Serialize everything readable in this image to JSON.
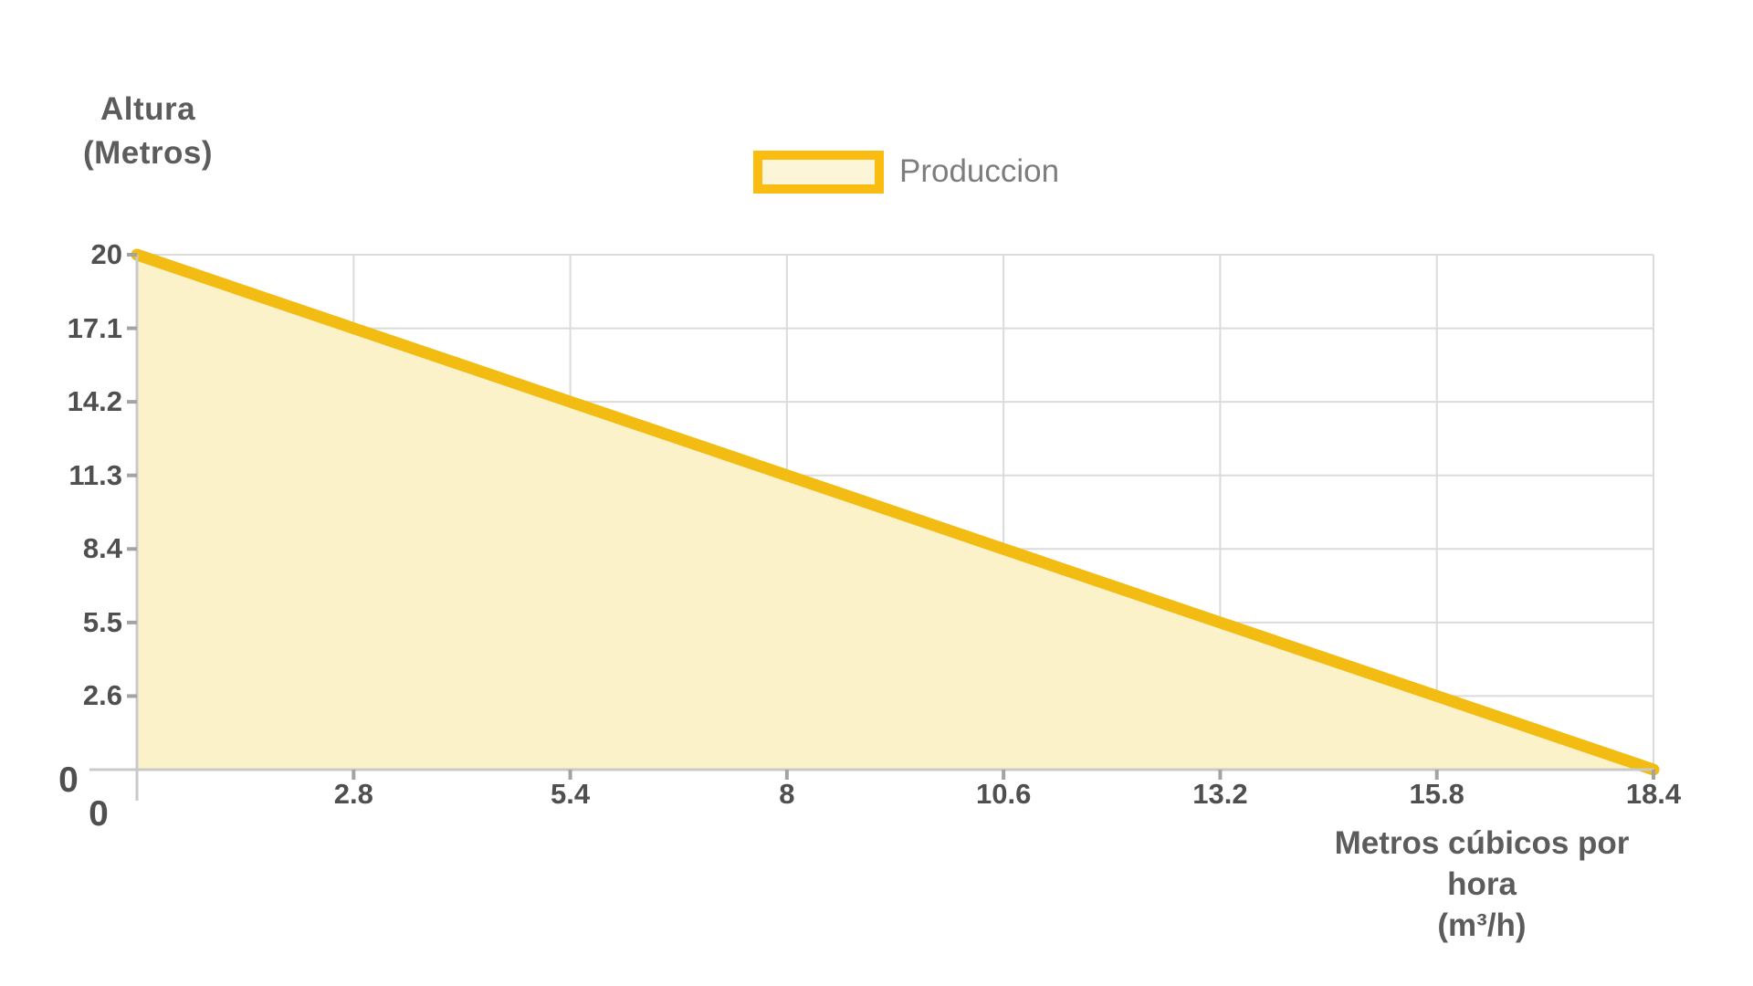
{
  "chart": {
    "y_axis_title_line1": "Altura",
    "y_axis_title_line2": "(Metros)",
    "x_axis_title_line1": "Metros cúbicos por hora",
    "x_axis_title_line2": "(m³/h)",
    "legend": [
      {
        "label": "Produccion",
        "swatch_fill": "#FDF5D7",
        "swatch_border": "#FBBC12"
      }
    ]
  },
  "chart_data": {
    "type": "area",
    "title": "",
    "xlabel": "Metros cúbicos por hora (m³/h)",
    "ylabel": "Altura (Metros)",
    "series": [
      {
        "name": "Produccion",
        "x": [
          0,
          2.8,
          5.4,
          8,
          10.6,
          13.2,
          15.8,
          18.4
        ],
        "y": [
          20,
          17.1,
          14.2,
          11.3,
          8.4,
          5.5,
          2.6,
          0
        ]
      }
    ],
    "x_ticks": [
      "0",
      "2.8",
      "5.4",
      "8",
      "10.6",
      "13.2",
      "15.8",
      "18.4"
    ],
    "y_ticks": [
      "0",
      "2.6",
      "5.5",
      "8.4",
      "11.3",
      "14.2",
      "17.1",
      "20"
    ],
    "xlim": [
      0,
      18.4
    ],
    "ylim": [
      0,
      20
    ],
    "grid": true,
    "legend_position": "top-center",
    "colors": {
      "line": "#f2bc13",
      "area_fill": "#fbf2ca",
      "grid": "#dbdbdb",
      "axis": "#c9c9c9",
      "tick_mark": "#a3a3a3",
      "tick_text": "#4f4f4f",
      "title_text": "#5c5c5c",
      "legend_text": "#7d7d7d"
    }
  }
}
